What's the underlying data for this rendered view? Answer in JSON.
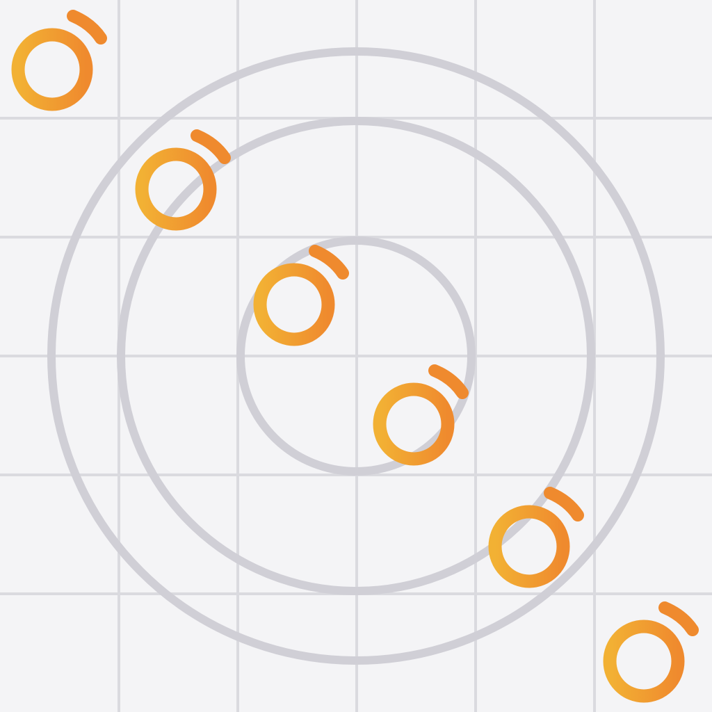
{
  "background": "#f4f4f6",
  "grid": {
    "line_color": "#dadadf",
    "columns": 6,
    "rows": 6
  },
  "rings": {
    "color": "#d0cfd6",
    "count": 3
  },
  "logo": {
    "icon": "o-with-accent-logo-icon",
    "gradient_start": "#f2b134",
    "gradient_end": "#ef8a2e",
    "count": 6
  }
}
